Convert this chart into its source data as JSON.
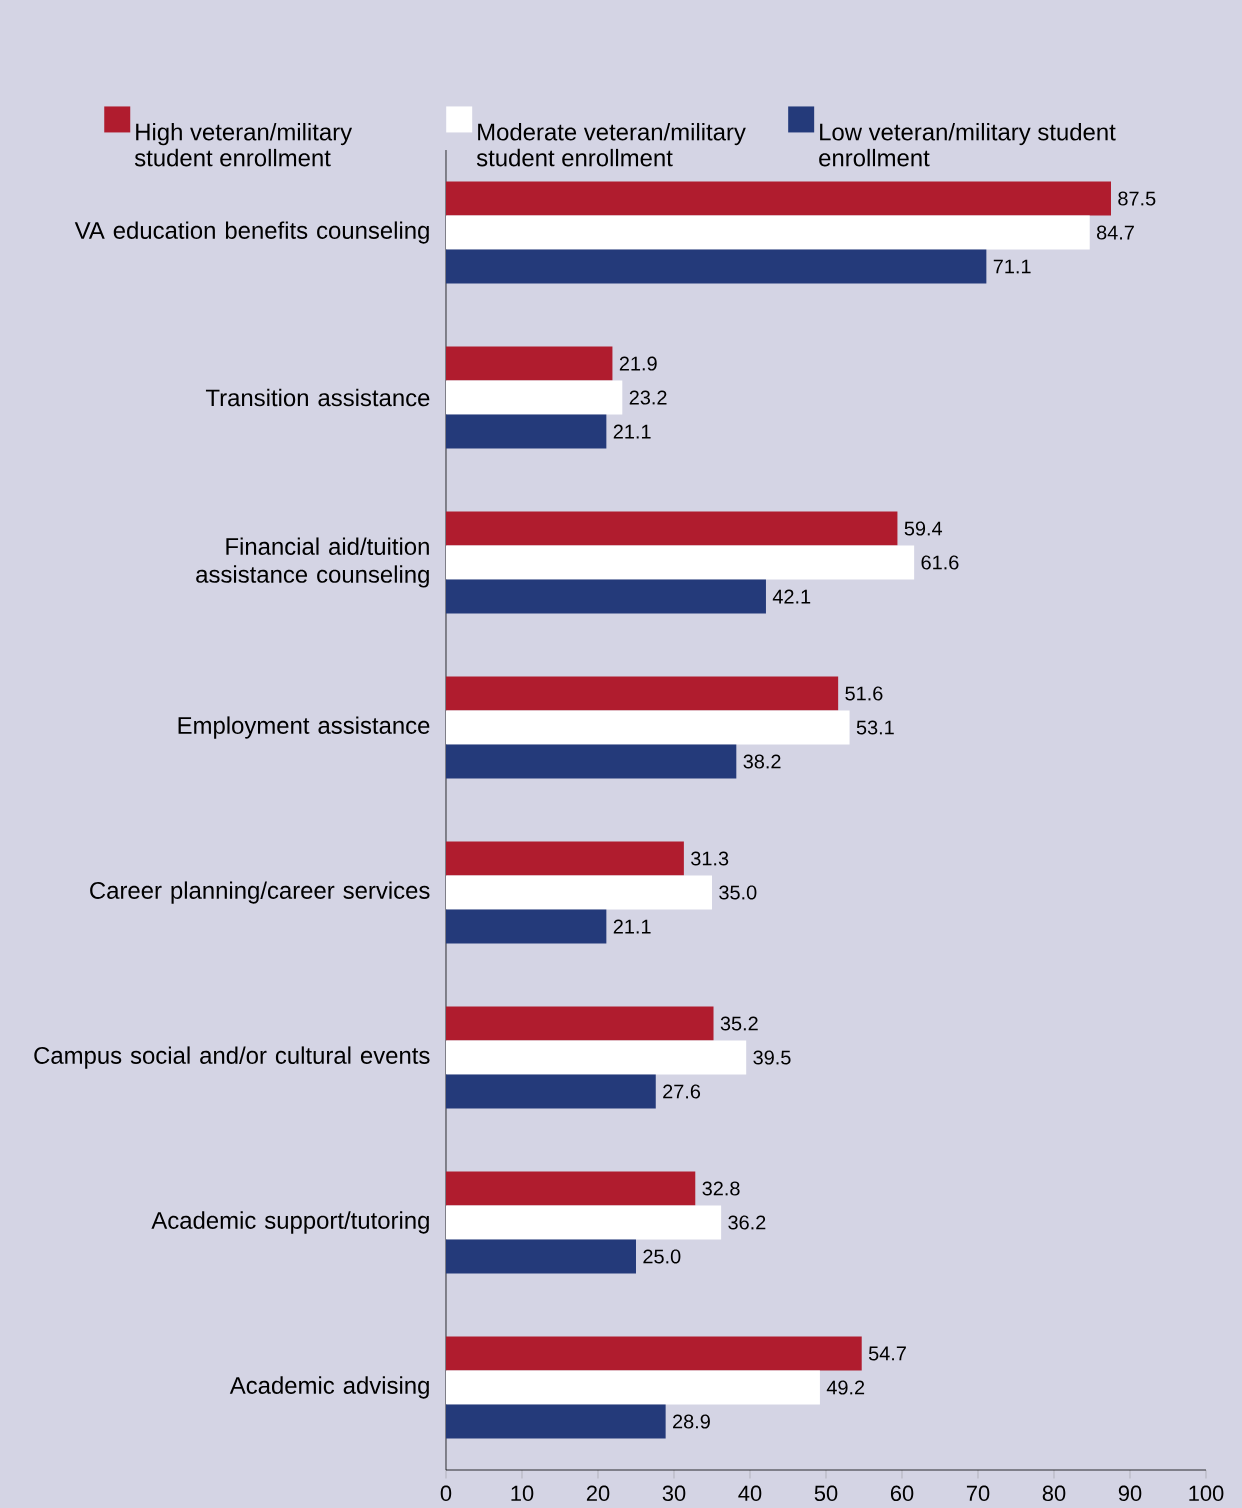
{
  "chart_data": {
    "type": "bar",
    "orientation": "horizontal",
    "categories": [
      "VA education benefits counseling",
      "Transition assistance",
      "Financial aid/tuition assistance counseling",
      "Employment assistance",
      "Career planning/career services",
      "Campus social and/or cultural events",
      "Academic support/tutoring",
      "Academic advising"
    ],
    "series": [
      {
        "name": "High veteran/military student enrollment",
        "color": "#b01c2e",
        "values": [
          87.5,
          21.9,
          59.4,
          51.6,
          31.3,
          35.2,
          32.8,
          54.7
        ],
        "value_labels": [
          "87.5",
          "21.9",
          "59.4",
          "51.6",
          "31.3",
          "35.2",
          "32.8",
          "54.7"
        ]
      },
      {
        "name": "Moderate veteran/military student enrollment",
        "color": "#ffffff",
        "values": [
          84.7,
          23.2,
          61.6,
          53.1,
          35.0,
          39.5,
          36.2,
          49.2
        ],
        "value_labels": [
          "84.7",
          "23.2",
          "61.6",
          "53.1",
          "35.0",
          "39.5",
          "36.2",
          "49.2"
        ]
      },
      {
        "name": "Low veteran/military student enrollment",
        "color": "#243a7a",
        "values": [
          71.1,
          21.1,
          42.1,
          38.2,
          21.1,
          27.6,
          25.0,
          28.9
        ],
        "value_labels": [
          "71.1",
          "21.1",
          "42.1",
          "38.2",
          "21.1",
          "27.6",
          "25.0",
          "28.9"
        ]
      }
    ],
    "xlim": [
      0,
      100
    ],
    "xticks": [
      0,
      10,
      20,
      30,
      40,
      50,
      60,
      70,
      80,
      90,
      100
    ],
    "legend": "top"
  }
}
